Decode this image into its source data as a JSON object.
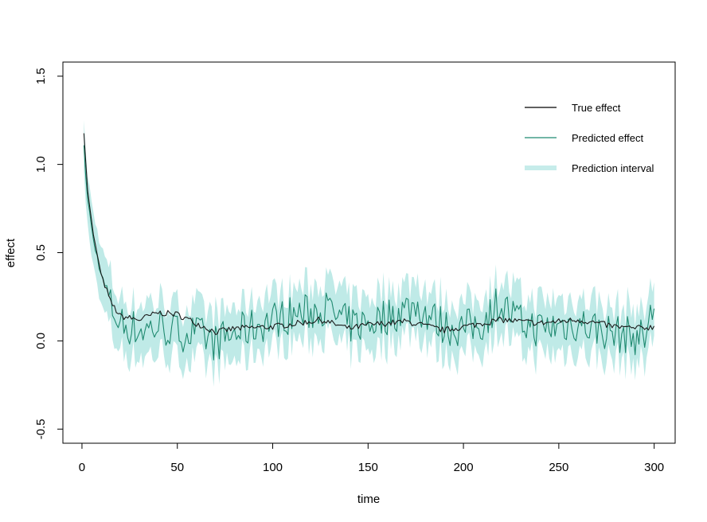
{
  "chart_data": {
    "type": "line",
    "title": "",
    "xlabel": "time",
    "ylabel": "effect",
    "xlim": [
      -10,
      311
    ],
    "ylim": [
      -0.58,
      1.58
    ],
    "xticks": [
      0,
      50,
      100,
      150,
      200,
      250,
      300
    ],
    "yticks": [
      -0.5,
      0.0,
      0.5,
      1.0,
      1.5
    ],
    "xtick_labels": [
      "0",
      "50",
      "100",
      "150",
      "200",
      "250",
      "300"
    ],
    "ytick_labels": [
      "-0.5",
      "0.0",
      "0.5",
      "1.0",
      "1.5"
    ],
    "grid": false,
    "legend_position": "top-right",
    "legend": [
      {
        "label": "True effect",
        "color": "#000000",
        "style": "line"
      },
      {
        "label": "Predicted effect",
        "color": "#1f8a70",
        "style": "line"
      },
      {
        "label": "Prediction interval",
        "color": "#c6ecea",
        "style": "band"
      }
    ],
    "colors": {
      "true": "#1a1a1a",
      "predicted": "#1f8a70",
      "interval": "#bfeae7"
    },
    "x_range": [
      1,
      300
    ],
    "true_effect_anchors": [
      [
        1,
        1.18
      ],
      [
        3,
        0.85
      ],
      [
        6,
        0.6
      ],
      [
        10,
        0.38
      ],
      [
        15,
        0.22
      ],
      [
        20,
        0.14
      ],
      [
        30,
        0.12
      ],
      [
        40,
        0.16
      ],
      [
        50,
        0.15
      ],
      [
        60,
        0.1
      ],
      [
        70,
        0.05
      ],
      [
        80,
        0.07
      ],
      [
        100,
        0.08
      ],
      [
        120,
        0.11
      ],
      [
        125,
        0.12
      ],
      [
        140,
        0.07
      ],
      [
        150,
        0.09
      ],
      [
        170,
        0.11
      ],
      [
        190,
        0.06
      ],
      [
        200,
        0.08
      ],
      [
        210,
        0.1
      ],
      [
        220,
        0.12
      ],
      [
        240,
        0.1
      ],
      [
        260,
        0.12
      ],
      [
        280,
        0.08
      ],
      [
        290,
        0.07
      ],
      [
        300,
        0.08
      ]
    ],
    "predicted_effect_anchors": [
      [
        1,
        1.09
      ],
      [
        3,
        0.8
      ],
      [
        6,
        0.57
      ],
      [
        10,
        0.38
      ],
      [
        15,
        0.2
      ],
      [
        20,
        0.1
      ],
      [
        30,
        0.06
      ],
      [
        40,
        0.08
      ],
      [
        50,
        0.05
      ],
      [
        60,
        0.04
      ],
      [
        70,
        -0.01
      ],
      [
        80,
        0.04
      ],
      [
        100,
        0.12
      ],
      [
        110,
        0.15
      ],
      [
        120,
        0.16
      ],
      [
        125,
        0.2
      ],
      [
        140,
        0.09
      ],
      [
        150,
        0.1
      ],
      [
        175,
        0.2
      ],
      [
        190,
        0.08
      ],
      [
        200,
        0.07
      ],
      [
        210,
        0.1
      ],
      [
        218,
        0.22
      ],
      [
        230,
        0.1
      ],
      [
        240,
        0.07
      ],
      [
        260,
        0.1
      ],
      [
        280,
        0.04
      ],
      [
        295,
        0.02
      ],
      [
        300,
        0.2
      ]
    ],
    "prediction_interval_halfwidth": 0.15
  }
}
